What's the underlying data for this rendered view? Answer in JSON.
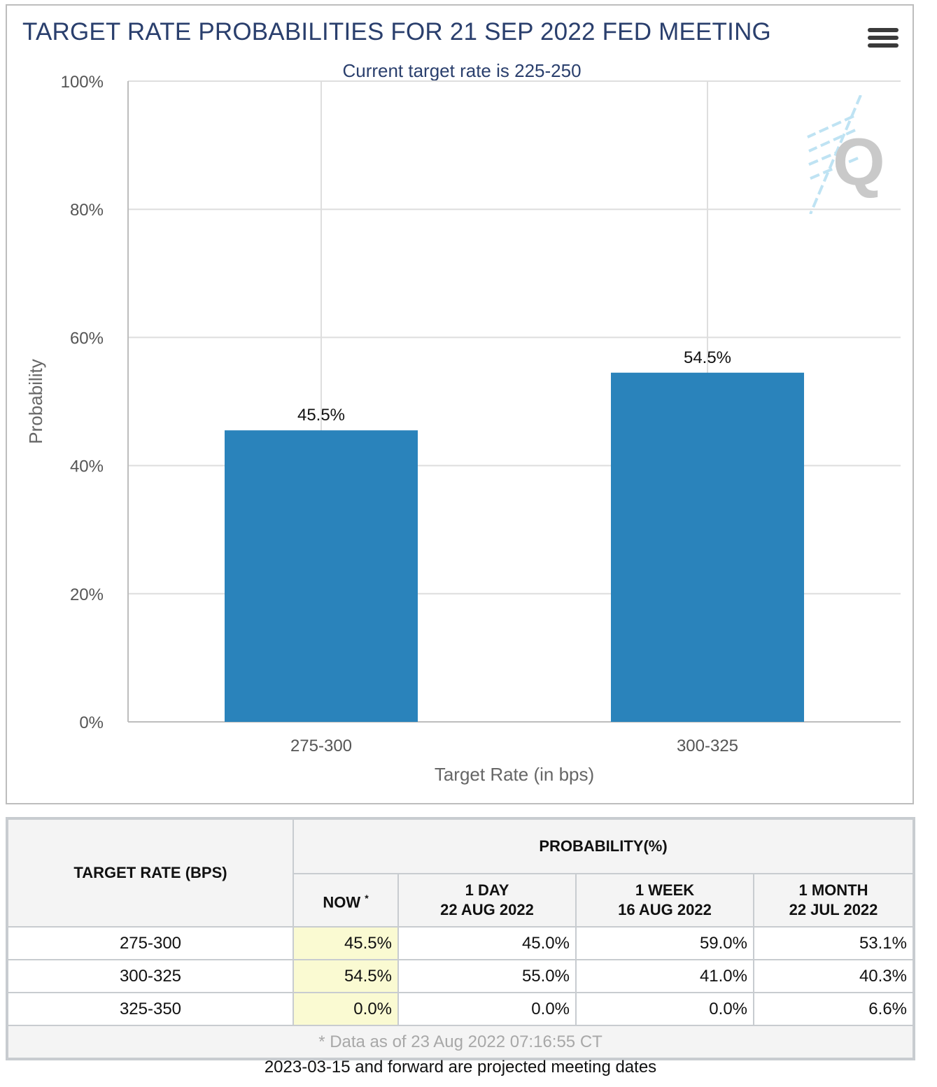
{
  "title": "TARGET RATE PROBABILITIES FOR 21 SEP 2022 FED MEETING",
  "subtitle": "Current target rate is 225-250",
  "menu_icon": "hamburger-menu-icon",
  "watermark_icon": "q-logo-icon",
  "colors": {
    "bar": "#2a83bb",
    "title": "#2a3f6d",
    "now_highlight": "#fafad2"
  },
  "chart_data": {
    "type": "bar",
    "title": "TARGET RATE PROBABILITIES FOR 21 SEP 2022 FED MEETING",
    "subtitle": "Current target rate is 225-250",
    "xlabel": "Target Rate (in bps)",
    "ylabel": "Probability",
    "categories": [
      "275-300",
      "300-325"
    ],
    "values": [
      45.5,
      54.5
    ],
    "data_labels": [
      "45.5%",
      "54.5%"
    ],
    "ylim": [
      0,
      100
    ],
    "yticks": [
      0,
      20,
      40,
      60,
      80,
      100
    ],
    "ytick_labels": [
      "0%",
      "20%",
      "40%",
      "60%",
      "80%",
      "100%"
    ],
    "grid": true,
    "legend": "none"
  },
  "table": {
    "rate_header": "TARGET RATE (BPS)",
    "prob_header": "PROBABILITY(%)",
    "columns": [
      {
        "line1": "NOW",
        "marker": "*",
        "line2": ""
      },
      {
        "line1": "1 DAY",
        "line2": "22 AUG 2022"
      },
      {
        "line1": "1 WEEK",
        "line2": "16 AUG 2022"
      },
      {
        "line1": "1 MONTH",
        "line2": "22 JUL 2022"
      }
    ],
    "rows": [
      {
        "rate": "275-300",
        "values": [
          "45.5%",
          "45.0%",
          "59.0%",
          "53.1%"
        ]
      },
      {
        "rate": "300-325",
        "values": [
          "54.5%",
          "55.0%",
          "41.0%",
          "40.3%"
        ]
      },
      {
        "rate": "325-350",
        "values": [
          "0.0%",
          "0.0%",
          "0.0%",
          "6.6%"
        ]
      }
    ],
    "footer": "* Data as of 23 Aug 2022 07:16:55 CT"
  },
  "note": "2023-03-15 and forward are projected meeting dates"
}
